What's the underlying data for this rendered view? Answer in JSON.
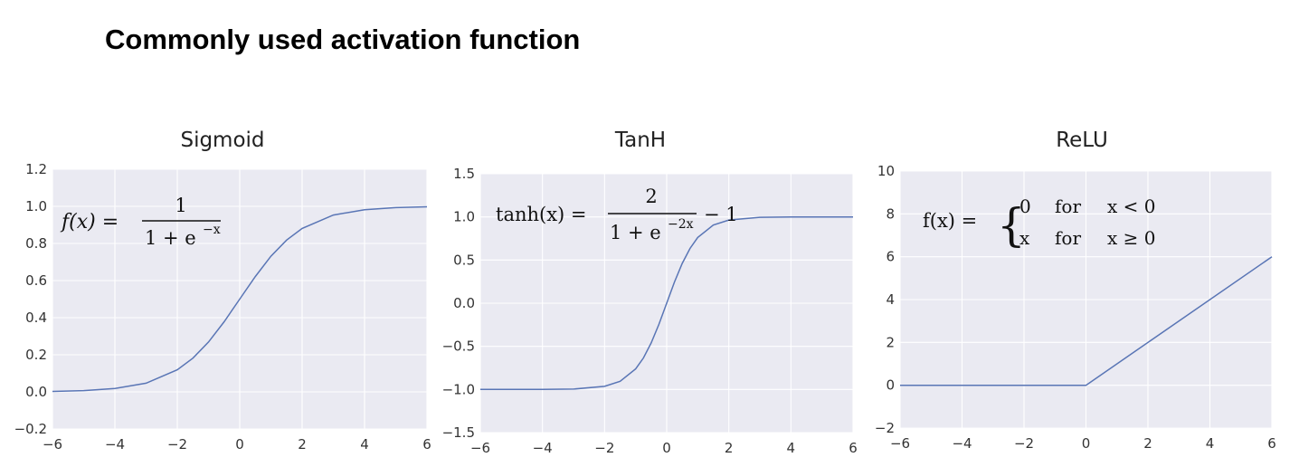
{
  "page": {
    "title": "Commonly used activation function"
  },
  "colors": {
    "plot_background": "#eaeaf2",
    "grid": "#ffffff",
    "line": "#5975b5"
  },
  "chart_data": [
    {
      "type": "line",
      "title": "Sigmoid",
      "xlabel": "",
      "ylabel": "",
      "xlim": [
        -6,
        6
      ],
      "ylim": [
        -0.2,
        1.2
      ],
      "x_ticks": [
        -6,
        -4,
        -2,
        0,
        2,
        4,
        6
      ],
      "y_ticks": [
        -0.2,
        0.0,
        0.2,
        0.4,
        0.6,
        0.8,
        1.0,
        1.2
      ],
      "grid": true,
      "formula": {
        "lhs": "f(x) =",
        "numerator": "1",
        "denominator": "1 + e",
        "exponent": "−x"
      },
      "series": [
        {
          "x": [
            -6,
            -5,
            -4,
            -3,
            -2,
            -1.5,
            -1,
            -0.5,
            0,
            0.5,
            1,
            1.5,
            2,
            3,
            4,
            5,
            6
          ],
          "y": [
            0.0025,
            0.0067,
            0.018,
            0.047,
            0.119,
            0.182,
            0.269,
            0.378,
            0.5,
            0.622,
            0.731,
            0.818,
            0.881,
            0.953,
            0.982,
            0.993,
            0.9975
          ]
        }
      ]
    },
    {
      "type": "line",
      "title": "TanH",
      "xlabel": "",
      "ylabel": "",
      "xlim": [
        -6,
        6
      ],
      "ylim": [
        -1.5,
        1.5
      ],
      "x_ticks": [
        -6,
        -4,
        -2,
        0,
        2,
        4,
        6
      ],
      "y_ticks": [
        -1.5,
        -1.0,
        -0.5,
        0.0,
        0.5,
        1.0,
        1.5
      ],
      "grid": true,
      "formula": {
        "lhs": "tanh(x) =",
        "numerator": "2",
        "denominator": "1 + e",
        "exponent": "−2x",
        "suffix": "− 1"
      },
      "series": [
        {
          "x": [
            -6,
            -4,
            -3,
            -2,
            -1.5,
            -1,
            -0.75,
            -0.5,
            -0.25,
            0,
            0.25,
            0.5,
            0.75,
            1,
            1.5,
            2,
            3,
            4,
            6
          ],
          "y": [
            -1.0,
            -0.999,
            -0.995,
            -0.964,
            -0.905,
            -0.762,
            -0.635,
            -0.462,
            -0.245,
            0.0,
            0.245,
            0.462,
            0.635,
            0.762,
            0.905,
            0.964,
            0.995,
            0.999,
            1.0
          ]
        }
      ]
    },
    {
      "type": "line",
      "title": "ReLU",
      "xlabel": "",
      "ylabel": "",
      "xlim": [
        -6,
        6
      ],
      "ylim": [
        -2,
        10
      ],
      "x_ticks": [
        -6,
        -4,
        -2,
        0,
        2,
        4,
        6
      ],
      "y_ticks": [
        -2,
        0,
        2,
        4,
        6,
        8,
        10
      ],
      "grid": true,
      "formula": {
        "lhs": "f(x) =",
        "cases": [
          {
            "value": "0",
            "word": "for",
            "condition": "x < 0"
          },
          {
            "value": "x",
            "word": "for",
            "condition": "x ≥ 0"
          }
        ]
      },
      "series": [
        {
          "x": [
            -6,
            0,
            6
          ],
          "y": [
            0,
            0,
            6
          ]
        }
      ]
    }
  ]
}
